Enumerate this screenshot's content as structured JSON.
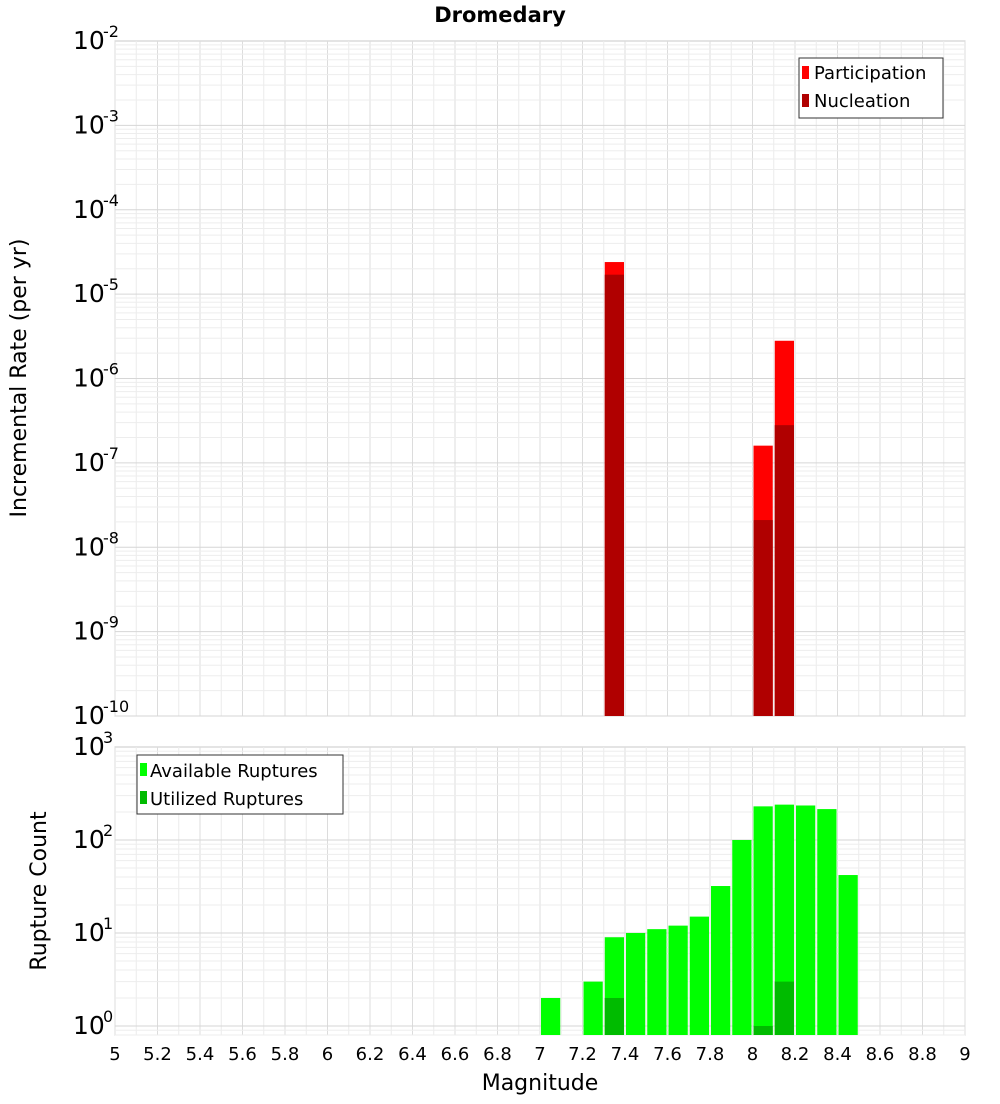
{
  "title": "Dromedary",
  "chart_data": [
    {
      "type": "bar",
      "title": "Dromedary",
      "ylabel": "Incremental Rate (per yr)",
      "xlabel": "",
      "xlim": [
        5,
        9
      ],
      "ylim": [
        1e-10,
        0.01
      ],
      "yscale": "log",
      "grid": true,
      "legend_position": "top-right",
      "bin_width": 0.1,
      "y_tick_exponents": [
        -10,
        -9,
        -8,
        -7,
        -6,
        -5,
        -4,
        -3,
        -2
      ],
      "y_tick_base": "10",
      "series": [
        {
          "name": "Participation",
          "color": "#ff0000",
          "x": [
            7.35,
            8.05,
            8.15
          ],
          "values": [
            2.4e-05,
            1.6e-07,
            2.8e-06
          ]
        },
        {
          "name": "Nucleation",
          "color": "#b00000",
          "x": [
            7.35,
            8.05,
            8.15
          ],
          "values": [
            1.7e-05,
            2.1e-08,
            2.8e-07
          ]
        }
      ]
    },
    {
      "type": "bar",
      "title": "",
      "ylabel": "Rupture Count",
      "xlabel": "Magnitude",
      "xlim": [
        5,
        9
      ],
      "ylim": [
        0.8,
        1000
      ],
      "yscale": "log",
      "grid": true,
      "legend_position": "top-left",
      "bin_width": 0.1,
      "y_tick_exponents": [
        0,
        1,
        2,
        3
      ],
      "y_tick_base": "10",
      "x_ticks": [
        "5",
        "5.2",
        "5.4",
        "5.6",
        "5.8",
        "6",
        "6.2",
        "6.4",
        "6.6",
        "6.8",
        "7",
        "7.2",
        "7.4",
        "7.6",
        "7.8",
        "8",
        "8.2",
        "8.4",
        "8.6",
        "8.8",
        "9"
      ],
      "series": [
        {
          "name": "Available Ruptures",
          "color": "#00ff00",
          "x": [
            7.05,
            7.25,
            7.35,
            7.45,
            7.55,
            7.65,
            7.75,
            7.85,
            7.95,
            8.05,
            8.15,
            8.25,
            8.35,
            8.45
          ],
          "values": [
            2,
            3,
            9,
            10,
            11,
            12,
            15,
            32,
            100,
            230,
            240,
            235,
            215,
            42
          ]
        },
        {
          "name": "Utilized Ruptures",
          "color": "#00bb00",
          "x": [
            7.35,
            8.05,
            8.15
          ],
          "values": [
            2,
            1,
            3
          ]
        }
      ]
    }
  ]
}
